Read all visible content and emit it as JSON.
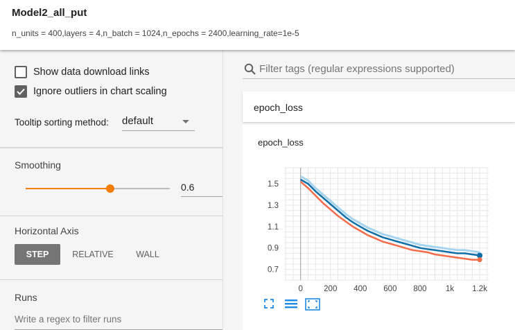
{
  "header": {
    "title": "Model2_all_put",
    "subtitle": "n_units = 400,layers = 4,n_batch = 1024,n_epochs = 2400,learning_rate=1e-5"
  },
  "sidebar": {
    "show_download_links": {
      "label": "Show data download links",
      "checked": false
    },
    "ignore_outliers": {
      "label": "Ignore outliers in chart scaling",
      "checked": true
    },
    "tooltip_sorting": {
      "label": "Tooltip sorting method:",
      "value": "default"
    },
    "smoothing": {
      "title": "Smoothing",
      "value": "0.6",
      "fraction": 0.6
    },
    "horizontal_axis": {
      "title": "Horizontal Axis",
      "options": [
        "STEP",
        "RELATIVE",
        "WALL"
      ],
      "selected": "STEP"
    },
    "runs": {
      "title": "Runs",
      "placeholder": "Write a regex to filter runs"
    }
  },
  "main": {
    "filter_placeholder": "Filter tags (regular expressions supported)",
    "card_header": "epoch_loss",
    "chart_title": "epoch_loss",
    "icons": [
      "expand-icon",
      "lines-icon",
      "fit-domain-icon"
    ]
  },
  "colors": {
    "accent": "#f57c00",
    "raw_series": "#0d6ea8",
    "raw_faint": "#a6d4ef",
    "smoothed_series": "#f46c4a",
    "active_button": "#757575"
  },
  "chart_data": {
    "type": "line",
    "title": "epoch_loss",
    "x_ticks": [
      "0",
      "200",
      "400",
      "600",
      "800",
      "1k",
      "1.2k"
    ],
    "y_ticks": [
      "0.7",
      "0.9",
      "1.1",
      "1.3",
      "1.5"
    ],
    "xlim": [
      -110,
      1260
    ],
    "ylim": [
      0.6,
      1.65
    ],
    "grid": true,
    "series": [
      {
        "x": [
          0,
          50,
          100,
          150,
          200,
          250,
          300,
          350,
          400,
          450,
          500,
          550,
          600,
          650,
          700,
          750,
          800,
          850,
          900,
          950,
          1000,
          1050,
          1100,
          1150,
          1200
        ],
        "values": [
          1.54,
          1.5,
          1.43,
          1.37,
          1.31,
          1.25,
          1.19,
          1.14,
          1.1,
          1.06,
          1.03,
          1.0,
          0.98,
          0.96,
          0.94,
          0.92,
          0.9,
          0.89,
          0.88,
          0.87,
          0.86,
          0.85,
          0.85,
          0.84,
          0.83
        ]
      },
      {
        "x": [
          0,
          50,
          100,
          150,
          200,
          250,
          300,
          350,
          400,
          450,
          500,
          550,
          600,
          650,
          700,
          750,
          800,
          850,
          900,
          950,
          1000,
          1050,
          1100,
          1150,
          1200
        ],
        "values": [
          1.52,
          1.46,
          1.39,
          1.32,
          1.26,
          1.2,
          1.15,
          1.1,
          1.06,
          1.02,
          0.99,
          0.96,
          0.94,
          0.92,
          0.9,
          0.88,
          0.87,
          0.86,
          0.84,
          0.83,
          0.82,
          0.81,
          0.8,
          0.79,
          0.79
        ]
      }
    ]
  }
}
